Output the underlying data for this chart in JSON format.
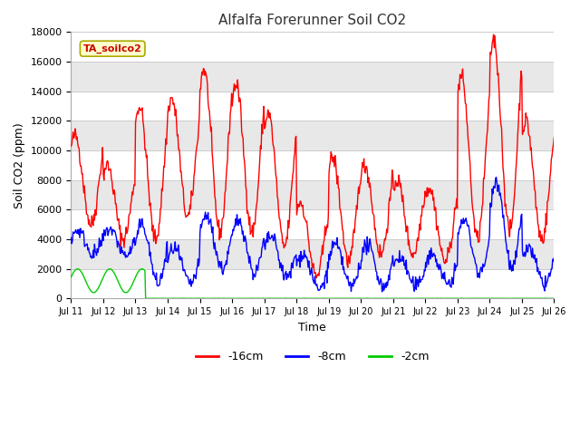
{
  "title": "Alfalfa Forerunner Soil CO2",
  "xlabel": "Time",
  "ylabel": "Soil CO2 (ppm)",
  "ylim": [
    0,
    18000
  ],
  "legend_label": "TA_soilco2",
  "series_labels": [
    "-16cm",
    "-8cm",
    "-2cm"
  ],
  "series_colors": [
    "#ff0000",
    "#0000ff",
    "#00cc00"
  ],
  "line_width": 1.0,
  "bg_color": "#ffffff",
  "plot_bg_color": "#ffffff",
  "title_color": "#333333",
  "annotation_box_facecolor": "#ffffcc",
  "annotation_box_edgecolor": "#aaaa00",
  "annotation_text_color": "#cc0000",
  "band_colors": [
    "#ffffff",
    "#e8e8e8"
  ],
  "grid_color": "#cccccc",
  "x_ticks": [
    "Jul 11",
    "Jul 12",
    "Jul 13",
    "Jul 14",
    "Jul 15",
    "Jul 16",
    "Jul 17",
    "Jul 18",
    "Jul 19",
    "Jul 20",
    "Jul 21",
    "Jul 22",
    "Jul 23",
    "Jul 24",
    "Jul 25",
    "Jul 26"
  ],
  "x_tick_positions": [
    0,
    1,
    2,
    3,
    4,
    5,
    6,
    7,
    8,
    9,
    10,
    11,
    12,
    13,
    14,
    15
  ],
  "yticks": [
    0,
    2000,
    4000,
    6000,
    8000,
    10000,
    12000,
    14000,
    16000,
    18000
  ]
}
